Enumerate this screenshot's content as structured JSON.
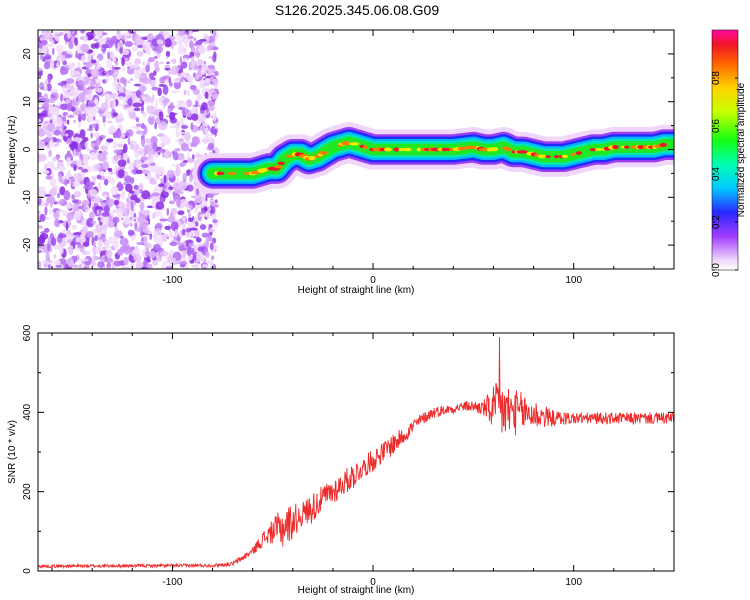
{
  "title": "S126.2025.345.06.08.G09",
  "colors": {
    "snr_line": "#ee2b2b",
    "frame": "#000000"
  },
  "chart_data": [
    {
      "type": "heatmap",
      "name": "spectrogram",
      "xlabel": "Height of straight line (km)",
      "ylabel": "Frequency (Hz)",
      "xlim": [
        -167,
        150
      ],
      "ylim": [
        -25,
        25
      ],
      "x_ticks": [
        -100,
        0,
        100
      ],
      "y_ticks": [
        -20,
        -10,
        0,
        10,
        20
      ],
      "x_tick_labels": [
        "-100",
        "0",
        "100"
      ],
      "y_tick_labels": [
        "-20",
        "-10",
        "0",
        "10",
        "20"
      ],
      "noise_region_x": [
        -167,
        -78
      ],
      "peak_ridge": {
        "x": [
          -80,
          -76,
          -70,
          -64,
          -60,
          -56,
          -52,
          -48,
          -44,
          -40,
          -36,
          -32,
          -28,
          -24,
          -20,
          -16,
          -12,
          -8,
          -4,
          0,
          10,
          20,
          30,
          40,
          50,
          55,
          60,
          65,
          70,
          75,
          80,
          85,
          90,
          95,
          100,
          105,
          110,
          115,
          120,
          125,
          130,
          135,
          140,
          145,
          150
        ],
        "freq": [
          -5,
          -5,
          -5,
          -5,
          -5,
          -4.5,
          -4,
          -4,
          -2,
          -1,
          -1,
          -2,
          -1.5,
          -0.5,
          0.5,
          1,
          1.5,
          1,
          0.5,
          0,
          0,
          0,
          0,
          0,
          0.5,
          0,
          0,
          0.5,
          -0.5,
          -0.5,
          -1,
          -1.5,
          -1.5,
          -1.5,
          -1,
          -0.5,
          0,
          0,
          0.5,
          0.5,
          0.5,
          0.5,
          0.5,
          1,
          1
        ]
      },
      "colorbar": {
        "label": "Normalized spectral amplitude",
        "range": [
          0,
          1
        ],
        "ticks": [
          "0.0",
          "0.2",
          "0.4",
          "0.6",
          "0.8"
        ]
      }
    },
    {
      "type": "line",
      "name": "snr",
      "xlabel": "Height of straight line (km)",
      "ylabel": "SNR (10 * v/v)",
      "xlim": [
        -167,
        150
      ],
      "ylim": [
        0,
        600
      ],
      "x_ticks": [
        -100,
        0,
        100
      ],
      "y_ticks": [
        0,
        200,
        400,
        600
      ],
      "x_tick_labels": [
        "-100",
        "0",
        "100"
      ],
      "y_tick_labels": [
        "0",
        "200",
        "400",
        "600"
      ],
      "envelope": {
        "x": [
          -167,
          -80,
          -70,
          -66,
          -60,
          -56,
          -50,
          -45,
          -40,
          -35,
          -30,
          -25,
          -20,
          -15,
          -10,
          -5,
          0,
          5,
          10,
          15,
          20,
          25,
          30,
          35,
          40,
          45,
          50,
          55,
          60,
          65,
          70,
          75,
          80,
          85,
          90,
          100,
          110,
          120,
          130,
          140,
          150
        ],
        "mean": [
          12,
          14,
          18,
          30,
          50,
          75,
          100,
          110,
          125,
          145,
          160,
          185,
          200,
          220,
          240,
          260,
          280,
          300,
          320,
          340,
          365,
          385,
          400,
          405,
          410,
          415,
          415,
          410,
          410,
          405,
          400,
          400,
          395,
          390,
          385,
          385,
          385,
          385,
          385,
          385,
          385
        ],
        "spread": [
          4,
          4,
          5,
          8,
          10,
          18,
          30,
          55,
          45,
          30,
          40,
          30,
          35,
          30,
          35,
          25,
          30,
          25,
          30,
          20,
          20,
          15,
          15,
          12,
          12,
          12,
          15,
          20,
          60,
          80,
          60,
          50,
          40,
          30,
          20,
          15,
          15,
          15,
          15,
          15,
          15
        ]
      },
      "max_point": {
        "x": 63,
        "y": 590
      }
    }
  ]
}
